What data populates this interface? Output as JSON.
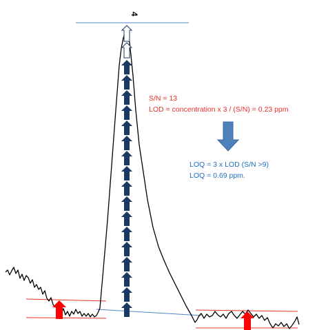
{
  "annotations": {
    "sn_label": "S/N = 13",
    "lod_formula": "LOD = concentration x 3 / (S/N) = 0.23 ppm",
    "loq_formula": "LOQ = 3 x LOD (S/N >9)",
    "loq_value": "LOQ = 0.69 ppm.",
    "peak_marker": "4"
  },
  "colors": {
    "signal_trace": "#000000",
    "signal_arrow": "#1b3a63",
    "noise_arrow": "#ff0000",
    "noise_band_line": "#e8302a",
    "baseline_line": "#4f84c4",
    "down_arrow": "#4f81bd",
    "lod_text": "#e8302a",
    "loq_text": "#1f6fc0"
  },
  "signal_arrow_count": 17
}
